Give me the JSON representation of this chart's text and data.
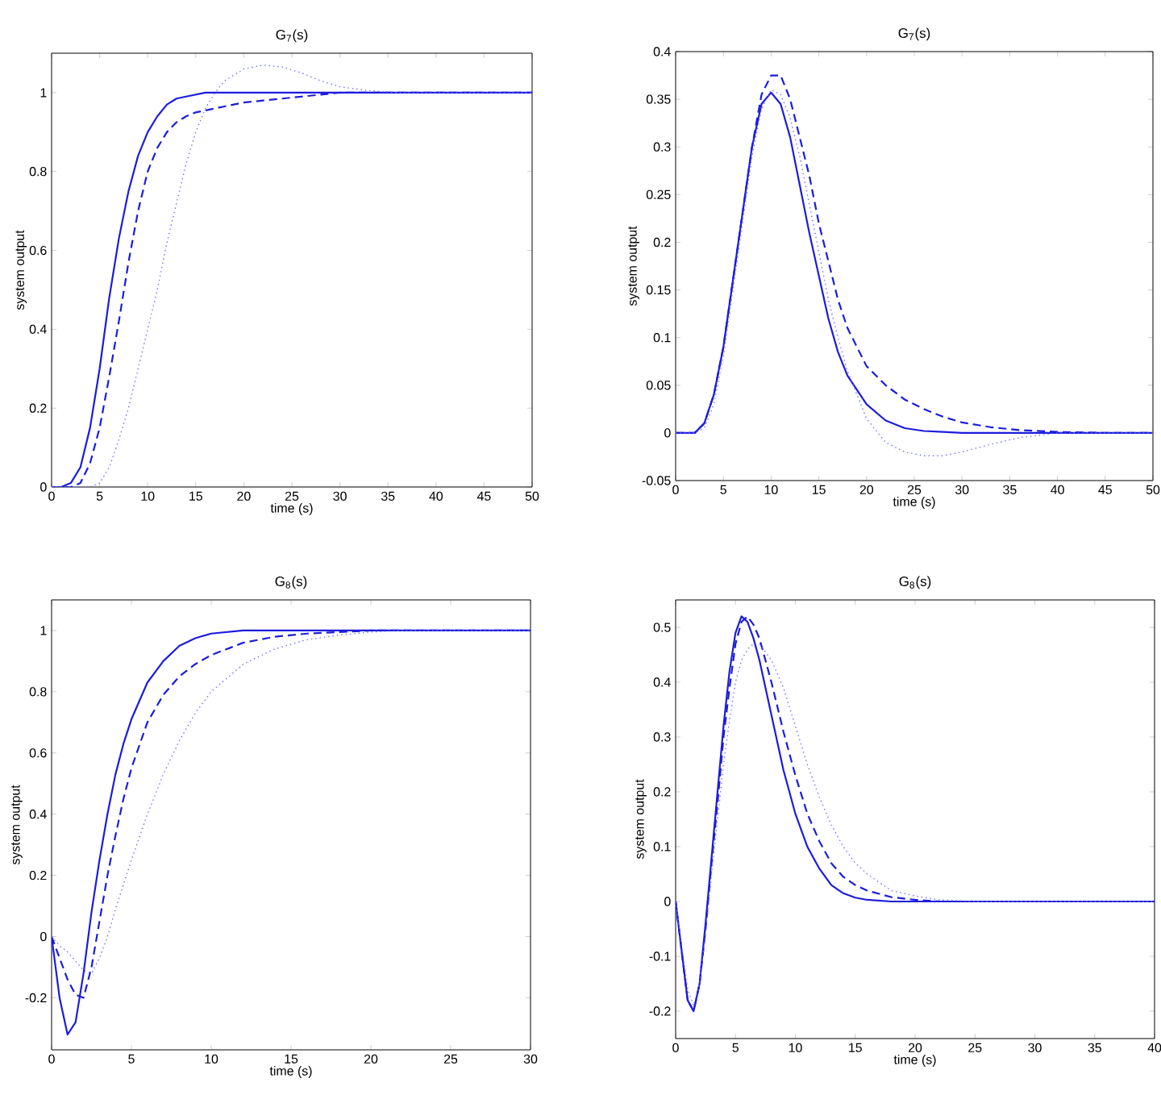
{
  "chart_data": [
    {
      "type": "line",
      "title": "G$_{7}$(s)",
      "xlabel": "time (s)",
      "ylabel": "system output",
      "xlim": [
        0,
        50
      ],
      "ylim": [
        0,
        1.1
      ],
      "xticks": [
        0,
        5,
        10,
        15,
        20,
        25,
        30,
        35,
        40,
        45,
        50
      ],
      "yticks": [
        0,
        0.2,
        0.4,
        0.6,
        0.8,
        1
      ],
      "x": [
        0,
        1,
        2,
        3,
        4,
        5,
        6,
        7,
        8,
        9,
        10,
        11,
        12,
        13,
        14,
        15,
        16,
        17,
        18,
        20,
        22,
        24,
        26,
        28,
        30,
        33,
        36,
        40,
        45,
        50
      ],
      "series": [
        {
          "color": "#1c1cdc",
          "line_style": "solid",
          "values": [
            0,
            0,
            0.01,
            0.05,
            0.15,
            0.3,
            0.48,
            0.63,
            0.75,
            0.84,
            0.9,
            0.94,
            0.97,
            0.985,
            0.99,
            0.995,
            1,
            1,
            1,
            1,
            1,
            1,
            1,
            1,
            1,
            1,
            1,
            1,
            1,
            1
          ]
        },
        {
          "color": "#1c1cdc",
          "line_style": "dashed",
          "values": [
            0,
            0,
            0,
            0.01,
            0.06,
            0.15,
            0.28,
            0.42,
            0.57,
            0.7,
            0.8,
            0.86,
            0.9,
            0.925,
            0.94,
            0.95,
            0.955,
            0.96,
            0.965,
            0.975,
            0.98,
            0.985,
            0.99,
            0.995,
            1,
            1,
            1,
            1,
            1,
            1
          ]
        },
        {
          "color": "#6a6aff",
          "line_style": "dotted",
          "values": [
            0,
            0,
            0,
            0,
            0,
            0.01,
            0.05,
            0.12,
            0.2,
            0.3,
            0.4,
            0.5,
            0.62,
            0.72,
            0.82,
            0.9,
            0.96,
            1,
            1.03,
            1.06,
            1.07,
            1.065,
            1.05,
            1.03,
            1.015,
            1.005,
            1,
            1,
            1,
            1
          ]
        }
      ]
    },
    {
      "type": "line",
      "title": "G$_{7}$(s)",
      "xlabel": "time (s)",
      "ylabel": "system output",
      "xlim": [
        0,
        50
      ],
      "ylim": [
        -0.05,
        0.4
      ],
      "xticks": [
        0,
        5,
        10,
        15,
        20,
        25,
        30,
        35,
        40,
        45,
        50
      ],
      "yticks": [
        -0.05,
        0,
        0.05,
        0.1,
        0.15,
        0.2,
        0.25,
        0.3,
        0.35,
        0.4
      ],
      "x": [
        0,
        1,
        2,
        3,
        4,
        5,
        6,
        7,
        8,
        9,
        10,
        11,
        12,
        13,
        14,
        15,
        16,
        17,
        18,
        20,
        22,
        24,
        26,
        28,
        30,
        33,
        36,
        40,
        45,
        50
      ],
      "series": [
        {
          "color": "#1c1cdc",
          "line_style": "solid",
          "values": [
            0,
            0,
            0,
            0.01,
            0.04,
            0.09,
            0.16,
            0.23,
            0.3,
            0.345,
            0.357,
            0.345,
            0.31,
            0.26,
            0.21,
            0.165,
            0.12,
            0.085,
            0.06,
            0.03,
            0.013,
            0.005,
            0.002,
            0.001,
            0,
            0,
            0,
            0,
            0,
            0
          ]
        },
        {
          "color": "#1c1cdc",
          "line_style": "dashed",
          "values": [
            0,
            0,
            0,
            0.01,
            0.04,
            0.09,
            0.16,
            0.23,
            0.3,
            0.355,
            0.375,
            0.375,
            0.35,
            0.31,
            0.27,
            0.22,
            0.18,
            0.14,
            0.11,
            0.07,
            0.05,
            0.035,
            0.025,
            0.017,
            0.011,
            0.006,
            0.003,
            0.001,
            0,
            0
          ]
        },
        {
          "color": "#6a6aff",
          "line_style": "dotted",
          "values": [
            0,
            0,
            0,
            0.005,
            0.03,
            0.08,
            0.15,
            0.22,
            0.29,
            0.34,
            0.36,
            0.355,
            0.33,
            0.29,
            0.24,
            0.19,
            0.14,
            0.1,
            0.065,
            0.015,
            -0.01,
            -0.02,
            -0.024,
            -0.024,
            -0.02,
            -0.012,
            -0.005,
            0,
            0,
            0
          ]
        }
      ]
    },
    {
      "type": "line",
      "title": "G$_{8}$(s)",
      "xlabel": "time (s)",
      "ylabel": "system output",
      "xlim": [
        0,
        30
      ],
      "ylim": [
        -0.37,
        1.1
      ],
      "xticks": [
        0,
        5,
        10,
        15,
        20,
        25,
        30
      ],
      "yticks": [
        -0.2,
        0,
        0.2,
        0.4,
        0.6,
        0.8,
        1
      ],
      "x": [
        0,
        0.5,
        1,
        1.5,
        2,
        2.5,
        3,
        3.5,
        4,
        4.5,
        5,
        6,
        7,
        8,
        9,
        10,
        12,
        14,
        16,
        18,
        20,
        22,
        25,
        30
      ],
      "series": [
        {
          "color": "#1c1cdc",
          "line_style": "solid",
          "values": [
            0,
            -0.2,
            -0.32,
            -0.28,
            -0.12,
            0.08,
            0.25,
            0.4,
            0.53,
            0.63,
            0.71,
            0.83,
            0.9,
            0.95,
            0.975,
            0.99,
            1,
            1,
            1,
            1,
            1,
            1,
            1,
            1
          ]
        },
        {
          "color": "#1c1cdc",
          "line_style": "dashed",
          "values": [
            0,
            -0.07,
            -0.14,
            -0.19,
            -0.2,
            -0.1,
            0.05,
            0.2,
            0.33,
            0.45,
            0.55,
            0.7,
            0.79,
            0.85,
            0.89,
            0.92,
            0.96,
            0.98,
            0.99,
            0.995,
            1,
            1,
            1,
            1
          ]
        },
        {
          "color": "#6a6aff",
          "line_style": "dotted",
          "values": [
            0,
            -0.03,
            -0.05,
            -0.08,
            -0.11,
            -0.12,
            -0.07,
            0,
            0.09,
            0.17,
            0.25,
            0.4,
            0.53,
            0.64,
            0.73,
            0.8,
            0.89,
            0.94,
            0.97,
            0.985,
            0.995,
            1,
            1,
            1
          ]
        }
      ]
    },
    {
      "type": "line",
      "title": "G$_{8}$(s)",
      "xlabel": "time (s)",
      "ylabel": "system output",
      "xlim": [
        0,
        40
      ],
      "ylim": [
        -0.25,
        0.55
      ],
      "xticks": [
        0,
        5,
        10,
        15,
        20,
        25,
        30,
        35,
        40
      ],
      "yticks": [
        -0.2,
        -0.1,
        0,
        0.1,
        0.2,
        0.3,
        0.4,
        0.5
      ],
      "x": [
        0,
        0.5,
        1,
        1.5,
        2,
        2.5,
        3,
        3.5,
        4,
        4.5,
        5,
        5.5,
        6,
        6.5,
        7,
        8,
        9,
        10,
        11,
        12,
        13,
        14,
        15,
        16,
        18,
        20,
        22,
        25,
        30,
        35,
        40
      ],
      "series": [
        {
          "color": "#1c1cdc",
          "line_style": "solid",
          "values": [
            0,
            -0.09,
            -0.18,
            -0.2,
            -0.15,
            -0.04,
            0.08,
            0.2,
            0.32,
            0.42,
            0.49,
            0.52,
            0.51,
            0.48,
            0.44,
            0.34,
            0.24,
            0.16,
            0.1,
            0.06,
            0.03,
            0.015,
            0.007,
            0.003,
            0,
            0,
            0,
            0,
            0,
            0,
            0
          ]
        },
        {
          "color": "#1c1cdc",
          "line_style": "dashed",
          "values": [
            0,
            -0.09,
            -0.18,
            -0.2,
            -0.15,
            -0.05,
            0.07,
            0.18,
            0.3,
            0.39,
            0.47,
            0.51,
            0.52,
            0.505,
            0.48,
            0.4,
            0.31,
            0.23,
            0.16,
            0.11,
            0.07,
            0.045,
            0.03,
            0.02,
            0.008,
            0.003,
            0,
            0,
            0,
            0,
            0
          ]
        },
        {
          "color": "#6a6aff",
          "line_style": "dotted",
          "values": [
            0,
            -0.08,
            -0.16,
            -0.19,
            -0.15,
            -0.06,
            0.05,
            0.15,
            0.25,
            0.33,
            0.4,
            0.44,
            0.46,
            0.47,
            0.47,
            0.44,
            0.39,
            0.32,
            0.25,
            0.19,
            0.14,
            0.1,
            0.07,
            0.05,
            0.02,
            0.01,
            0.003,
            0,
            0,
            0,
            0
          ]
        }
      ]
    }
  ]
}
